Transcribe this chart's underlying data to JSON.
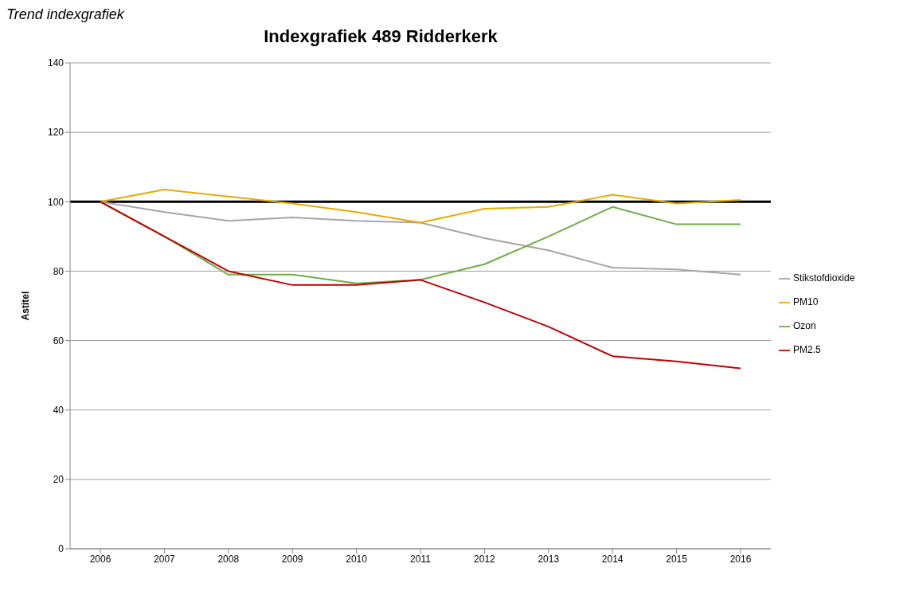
{
  "chart_data": {
    "type": "line",
    "title": "Indexgrafiek 489 Ridderkerk",
    "ylabel": "Astitel",
    "annotations": [
      "Trend indexgrafiek"
    ],
    "categories": [
      "2006",
      "2007",
      "2008",
      "2009",
      "2010",
      "2011",
      "2012",
      "2013",
      "2014",
      "2015",
      "2016"
    ],
    "series": [
      {
        "name": "Stikstofdioxide",
        "color": "#a6a6a6",
        "values": [
          100,
          97,
          94.5,
          95.5,
          94.5,
          94,
          89.5,
          86,
          81,
          80.5,
          79
        ]
      },
      {
        "name": "PM10",
        "color": "#e6ac00",
        "values": [
          100,
          103.5,
          101.5,
          99.5,
          97,
          94,
          98,
          98.5,
          102,
          99.5,
          100.5
        ]
      },
      {
        "name": "Ozon",
        "color": "#70ad47",
        "values": [
          100,
          90,
          79,
          79,
          76.5,
          77.5,
          82,
          90,
          98.5,
          93.5,
          93.5
        ]
      },
      {
        "name": "PM2.5",
        "color": "#c00000",
        "values": [
          100,
          90,
          80,
          76,
          76,
          77.5,
          71,
          64,
          55.5,
          54,
          52
        ]
      }
    ],
    "ylim": [
      0,
      140
    ],
    "yticks": [
      0,
      20,
      40,
      60,
      80,
      100,
      120,
      140
    ],
    "grid": "y",
    "legend": "right",
    "marker": "none",
    "line_style": "solid",
    "ref_lines": [
      {
        "axis": "y",
        "value": 100,
        "color": "#000000"
      }
    ]
  }
}
